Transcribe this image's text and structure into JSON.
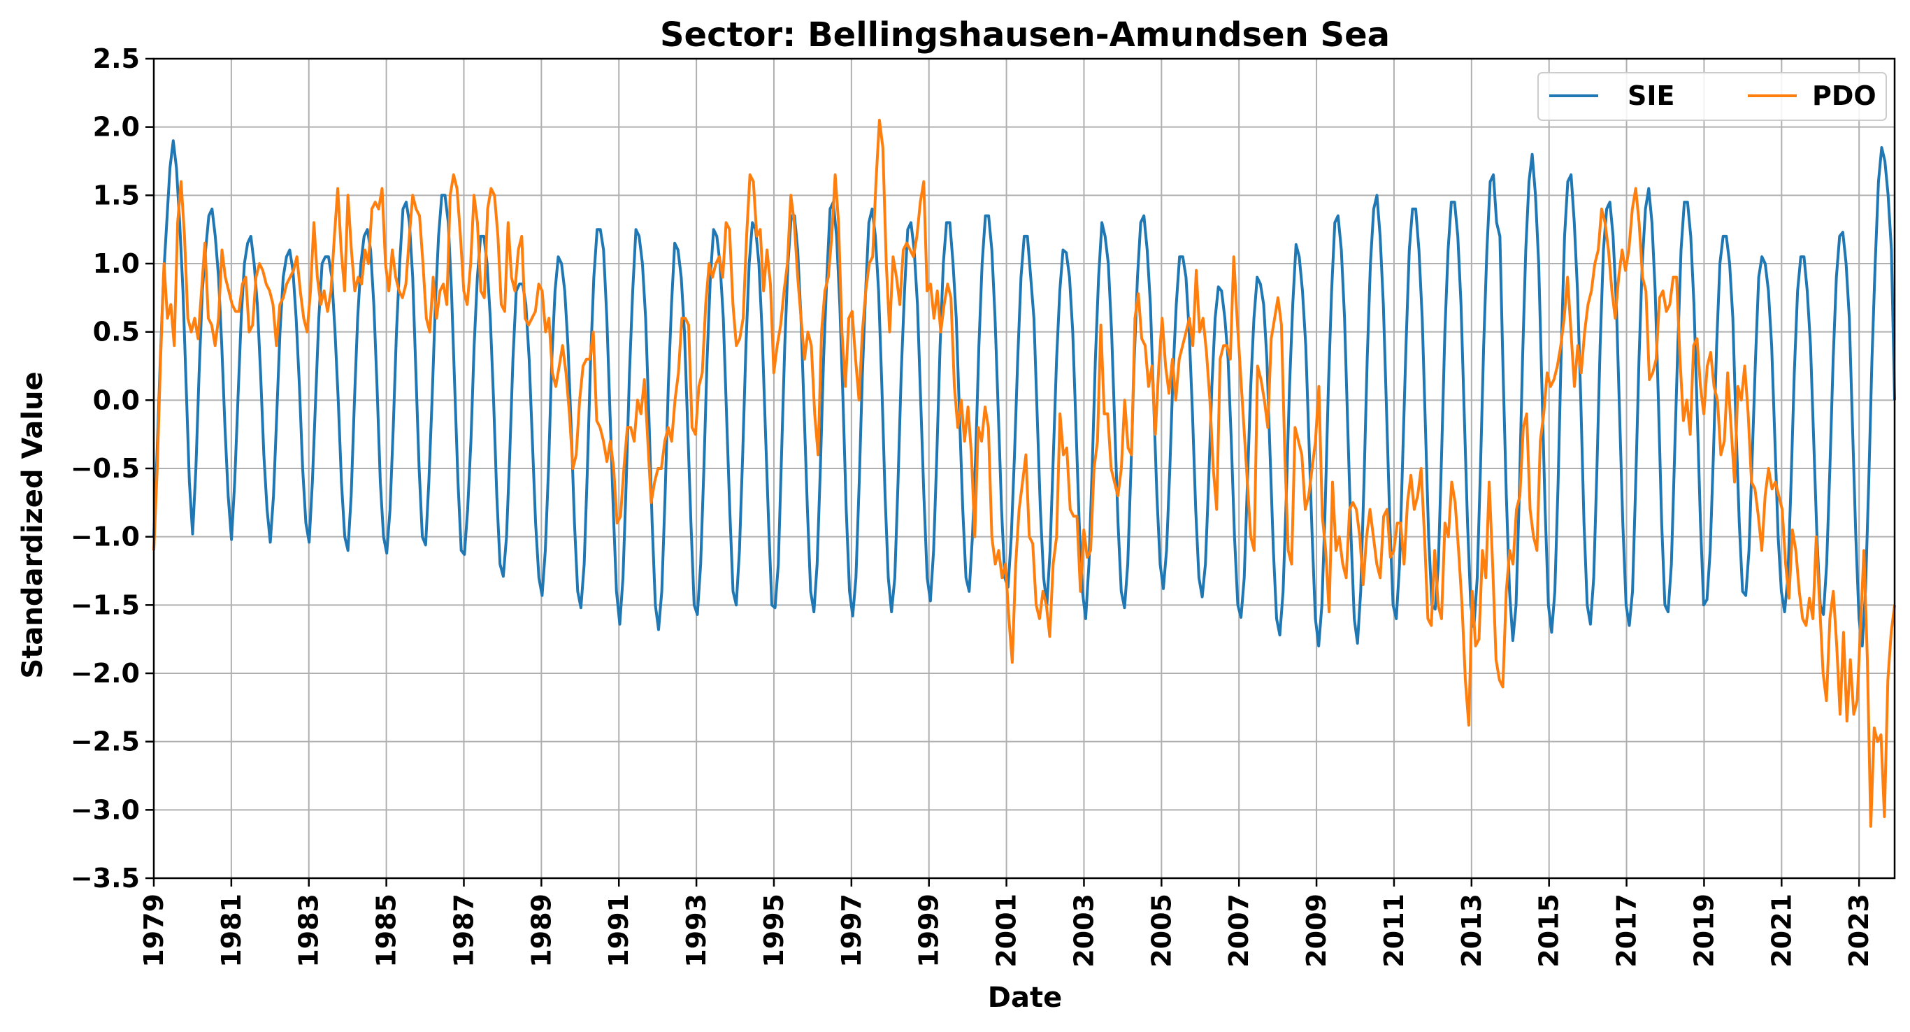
{
  "chart_data": {
    "type": "line",
    "title": "Sector: Bellingshausen-Amundsen Sea",
    "xlabel": "Date",
    "ylabel": "Standardized Value",
    "xlim": [
      "1979-01",
      "2023-12"
    ],
    "ylim": [
      -3.5,
      2.5
    ],
    "grid": true,
    "legend": "top-right",
    "x_ticks": [
      "1979",
      "1981",
      "1983",
      "1985",
      "1987",
      "1989",
      "1991",
      "1993",
      "1995",
      "1997",
      "1999",
      "2001",
      "2003",
      "2005",
      "2007",
      "2009",
      "2011",
      "2013",
      "2015",
      "2017",
      "2019",
      "2021",
      "2023"
    ],
    "y_ticks": [
      "2.5",
      "2.0",
      "1.5",
      "1.0",
      "0.5",
      "0.0",
      "−0.5",
      "−1.0",
      "−1.5",
      "−2.0",
      "−2.5",
      "−3.0",
      "−3.5"
    ],
    "series": [
      {
        "name": "SIE",
        "color": "#1f77b4",
        "sampling": "monthly from 1979-01",
        "values": [
          -1.0,
          -0.4,
          0.3,
          0.9,
          1.3,
          1.7,
          1.9,
          1.7,
          1.3,
          0.8,
          0.1,
          -0.6,
          -0.98,
          -0.5,
          0.2,
          0.8,
          1.1,
          1.35,
          1.4,
          1.2,
          0.9,
          0.4,
          -0.2,
          -0.7,
          -1.02,
          -0.6,
          0.0,
          0.6,
          1.0,
          1.15,
          1.2,
          1.0,
          0.7,
          0.2,
          -0.4,
          -0.8,
          -1.04,
          -0.7,
          -0.1,
          0.5,
          0.9,
          1.05,
          1.1,
          0.95,
          0.6,
          0.1,
          -0.5,
          -0.9,
          -1.04,
          -0.6,
          0.0,
          0.6,
          1.0,
          1.05,
          1.05,
          0.9,
          0.5,
          0.0,
          -0.6,
          -1.0,
          -1.1,
          -0.7,
          0.0,
          0.6,
          1.0,
          1.2,
          1.25,
          1.1,
          0.7,
          0.1,
          -0.6,
          -1.0,
          -1.12,
          -0.8,
          -0.2,
          0.5,
          1.0,
          1.4,
          1.45,
          1.3,
          0.9,
          0.2,
          -0.5,
          -1.0,
          -1.06,
          -0.6,
          0.0,
          0.7,
          1.2,
          1.5,
          1.5,
          1.3,
          0.8,
          0.1,
          -0.6,
          -1.1,
          -1.13,
          -0.8,
          -0.3,
          0.4,
          0.9,
          1.2,
          1.2,
          1.0,
          0.6,
          0.0,
          -0.7,
          -1.2,
          -1.29,
          -1.0,
          -0.4,
          0.3,
          0.8,
          0.85,
          0.85,
          0.7,
          0.3,
          -0.3,
          -0.9,
          -1.3,
          -1.43,
          -1.1,
          -0.5,
          0.3,
          0.8,
          1.05,
          1.0,
          0.8,
          0.4,
          -0.2,
          -0.9,
          -1.4,
          -1.52,
          -1.2,
          -0.5,
          0.3,
          0.9,
          1.25,
          1.25,
          1.1,
          0.6,
          -0.1,
          -0.8,
          -1.4,
          -1.64,
          -1.3,
          -0.6,
          0.2,
          0.8,
          1.25,
          1.2,
          1.0,
          0.6,
          -0.1,
          -0.9,
          -1.5,
          -1.68,
          -1.4,
          -0.7,
          0.1,
          0.7,
          1.15,
          1.1,
          0.9,
          0.5,
          -0.2,
          -0.9,
          -1.5,
          -1.57,
          -1.2,
          -0.5,
          0.3,
          0.9,
          1.25,
          1.2,
          1.0,
          0.6,
          -0.1,
          -0.8,
          -1.4,
          -1.5,
          -1.1,
          -0.4,
          0.4,
          1.0,
          1.3,
          1.25,
          1.0,
          0.5,
          -0.2,
          -0.9,
          -1.5,
          -1.52,
          -1.2,
          -0.4,
          0.4,
          1.0,
          1.35,
          1.35,
          1.1,
          0.6,
          -0.1,
          -0.8,
          -1.4,
          -1.55,
          -1.2,
          -0.5,
          0.3,
          0.9,
          1.4,
          1.45,
          1.2,
          0.7,
          0.0,
          -0.8,
          -1.4,
          -1.58,
          -1.3,
          -0.6,
          0.2,
          0.8,
          1.3,
          1.4,
          1.2,
          0.8,
          0.1,
          -0.7,
          -1.3,
          -1.55,
          -1.3,
          -0.6,
          0.2,
          0.8,
          1.25,
          1.3,
          1.1,
          0.7,
          0.0,
          -0.7,
          -1.3,
          -1.47,
          -1.1,
          -0.4,
          0.4,
          1.0,
          1.3,
          1.3,
          1.0,
          0.6,
          -0.1,
          -0.8,
          -1.3,
          -1.4,
          -1.0,
          -0.4,
          0.4,
          1.0,
          1.35,
          1.35,
          1.1,
          0.6,
          -0.1,
          -0.8,
          -1.3,
          -1.37,
          -1.0,
          -0.4,
          0.3,
          0.9,
          1.2,
          1.2,
          0.9,
          0.6,
          -0.1,
          -0.8,
          -1.3,
          -1.5,
          -1.1,
          -0.4,
          0.3,
          0.8,
          1.1,
          1.08,
          0.9,
          0.5,
          -0.2,
          -0.9,
          -1.4,
          -1.6,
          -1.2,
          -0.5,
          0.3,
          0.9,
          1.3,
          1.2,
          1.0,
          0.5,
          -0.2,
          -0.9,
          -1.4,
          -1.52,
          -1.2,
          -0.5,
          0.3,
          0.9,
          1.3,
          1.35,
          1.1,
          0.7,
          0.0,
          -0.7,
          -1.2,
          -1.38,
          -1.1,
          -0.5,
          0.2,
          0.7,
          1.05,
          1.05,
          0.9,
          0.5,
          -0.1,
          -0.8,
          -1.3,
          -1.44,
          -1.2,
          -0.6,
          0.1,
          0.6,
          0.83,
          0.8,
          0.6,
          0.3,
          -0.3,
          -1.0,
          -1.5,
          -1.59,
          -1.3,
          -0.6,
          0.1,
          0.6,
          0.9,
          0.85,
          0.7,
          0.3,
          -0.4,
          -1.1,
          -1.6,
          -1.72,
          -1.4,
          -0.7,
          0.1,
          0.7,
          1.14,
          1.05,
          0.8,
          0.4,
          -0.3,
          -1.0,
          -1.6,
          -1.8,
          -1.5,
          -0.8,
          0.1,
          0.8,
          1.3,
          1.35,
          1.1,
          0.6,
          -0.2,
          -1.0,
          -1.6,
          -1.78,
          -1.4,
          -0.6,
          0.3,
          1.0,
          1.4,
          1.5,
          1.2,
          0.7,
          -0.1,
          -0.9,
          -1.5,
          -1.6,
          -1.2,
          -0.4,
          0.4,
          1.1,
          1.4,
          1.4,
          1.1,
          0.6,
          -0.2,
          -1.0,
          -1.5,
          -1.53,
          -1.2,
          -0.4,
          0.5,
          1.1,
          1.45,
          1.45,
          1.2,
          0.7,
          -0.1,
          -0.9,
          -1.5,
          -1.66,
          -1.3,
          -0.5,
          0.4,
          1.1,
          1.6,
          1.65,
          1.3,
          1.2,
          0.2,
          -0.7,
          -1.4,
          -1.76,
          -1.5,
          -0.7,
          0.3,
          1.1,
          1.6,
          1.8,
          1.5,
          1.0,
          0.1,
          -0.8,
          -1.5,
          -1.7,
          -1.4,
          -0.6,
          0.4,
          1.2,
          1.6,
          1.65,
          1.3,
          0.8,
          0.0,
          -0.9,
          -1.5,
          -1.64,
          -1.3,
          -0.5,
          0.4,
          1.1,
          1.4,
          1.45,
          1.2,
          0.7,
          -0.1,
          -0.9,
          -1.5,
          -1.65,
          -1.4,
          -0.6,
          0.3,
          1.0,
          1.4,
          1.55,
          1.3,
          0.8,
          0.0,
          -0.9,
          -1.5,
          -1.55,
          -1.2,
          -0.4,
          0.4,
          1.1,
          1.45,
          1.45,
          1.2,
          0.7,
          -0.1,
          -0.9,
          -1.5,
          -1.46,
          -1.1,
          -0.4,
          0.4,
          1.0,
          1.2,
          1.2,
          1.0,
          0.6,
          -0.2,
          -0.9,
          -1.4,
          -1.43,
          -1.1,
          -0.4,
          0.3,
          0.9,
          1.05,
          1.0,
          0.8,
          0.4,
          -0.3,
          -1.0,
          -1.4,
          -1.55,
          -1.3,
          -0.6,
          0.2,
          0.8,
          1.05,
          1.05,
          0.8,
          0.4,
          -0.3,
          -1.0,
          -1.5,
          -1.57,
          -1.2,
          -0.5,
          0.3,
          0.9,
          1.2,
          1.23,
          1.0,
          0.6,
          -0.2,
          -1.0,
          -1.6,
          -1.8,
          -1.4,
          -0.6,
          0.3,
          1.0,
          1.6,
          1.85,
          1.75,
          1.5,
          1.1,
          0.0
        ]
      },
      {
        "name": "PDO",
        "color": "#ff7f0e",
        "sampling": "monthly from 1979-01",
        "values": [
          -1.1,
          -0.5,
          0.3,
          1.0,
          0.6,
          0.7,
          0.4,
          1.3,
          1.6,
          1.2,
          0.6,
          0.5,
          0.6,
          0.45,
          0.8,
          1.15,
          0.6,
          0.55,
          0.4,
          0.6,
          1.1,
          0.9,
          0.8,
          0.7,
          0.65,
          0.65,
          0.85,
          0.9,
          0.5,
          0.55,
          0.9,
          1.0,
          0.95,
          0.85,
          0.8,
          0.7,
          0.4,
          0.7,
          0.75,
          0.85,
          0.9,
          0.95,
          1.05,
          0.8,
          0.6,
          0.5,
          0.8,
          1.3,
          0.9,
          0.7,
          0.8,
          0.65,
          0.8,
          1.2,
          1.55,
          1.1,
          0.8,
          1.5,
          1.1,
          0.8,
          0.9,
          0.85,
          1.1,
          1.0,
          1.4,
          1.45,
          1.4,
          1.55,
          1.0,
          0.8,
          1.1,
          0.9,
          0.8,
          0.75,
          0.85,
          1.2,
          1.5,
          1.4,
          1.35,
          1.0,
          0.6,
          0.5,
          0.9,
          0.6,
          0.8,
          0.85,
          0.7,
          1.5,
          1.65,
          1.55,
          1.2,
          0.8,
          0.7,
          1.0,
          1.5,
          1.3,
          0.8,
          0.75,
          1.4,
          1.55,
          1.5,
          1.2,
          0.7,
          0.65,
          1.3,
          0.9,
          0.8,
          1.1,
          1.2,
          0.6,
          0.55,
          0.6,
          0.65,
          0.85,
          0.8,
          0.5,
          0.6,
          0.2,
          0.1,
          0.25,
          0.4,
          0.2,
          -0.1,
          -0.5,
          -0.4,
          0.0,
          0.25,
          0.3,
          0.3,
          0.5,
          -0.15,
          -0.2,
          -0.3,
          -0.45,
          -0.3,
          -0.5,
          -0.9,
          -0.85,
          -0.5,
          -0.2,
          -0.2,
          -0.3,
          0.0,
          -0.1,
          0.15,
          -0.3,
          -0.75,
          -0.6,
          -0.5,
          -0.5,
          -0.3,
          -0.2,
          -0.3,
          0.0,
          0.2,
          0.6,
          0.6,
          0.55,
          -0.2,
          -0.25,
          0.1,
          0.2,
          0.7,
          1.0,
          0.9,
          1.0,
          1.05,
          0.9,
          1.3,
          1.25,
          0.7,
          0.4,
          0.45,
          0.6,
          1.2,
          1.65,
          1.6,
          1.2,
          1.25,
          0.8,
          1.1,
          0.85,
          0.2,
          0.4,
          0.55,
          0.8,
          1.0,
          1.5,
          1.3,
          0.9,
          0.6,
          0.3,
          0.5,
          0.4,
          -0.1,
          -0.4,
          0.5,
          0.8,
          0.9,
          1.2,
          1.65,
          1.3,
          0.5,
          0.1,
          0.6,
          0.65,
          0.3,
          0.0,
          0.5,
          0.8,
          1.0,
          1.05,
          1.6,
          2.05,
          1.85,
          1.0,
          0.5,
          1.05,
          0.9,
          0.7,
          1.1,
          1.15,
          1.1,
          1.05,
          1.2,
          1.45,
          1.6,
          0.8,
          0.85,
          0.6,
          0.8,
          0.5,
          0.7,
          0.85,
          0.75,
          0.1,
          -0.2,
          0.0,
          -0.3,
          -0.05,
          -0.4,
          -1.0,
          -0.2,
          -0.3,
          -0.05,
          -0.2,
          -1.0,
          -1.2,
          -1.1,
          -1.3,
          -1.2,
          -1.6,
          -1.92,
          -1.2,
          -0.8,
          -0.6,
          -0.4,
          -1.0,
          -1.05,
          -1.5,
          -1.6,
          -1.4,
          -1.5,
          -1.73,
          -1.2,
          -1.0,
          -0.1,
          -0.4,
          -0.35,
          -0.8,
          -0.85,
          -0.85,
          -1.4,
          -0.95,
          -1.15,
          -1.1,
          -0.5,
          -0.3,
          0.55,
          -0.1,
          -0.1,
          -0.5,
          -0.6,
          -0.7,
          -0.5,
          0.0,
          -0.35,
          -0.4,
          0.6,
          0.78,
          0.45,
          0.4,
          0.1,
          0.25,
          -0.25,
          0.25,
          0.6,
          0.25,
          0.05,
          0.3,
          0.0,
          0.3,
          0.4,
          0.5,
          0.6,
          0.4,
          0.95,
          0.5,
          0.6,
          0.35,
          0.0,
          -0.5,
          -0.8,
          0.3,
          0.4,
          0.4,
          0.3,
          1.05,
          0.6,
          0.2,
          -0.2,
          -0.6,
          -1.0,
          -1.1,
          0.25,
          0.15,
          0.0,
          -0.2,
          0.45,
          0.6,
          0.75,
          0.55,
          -0.4,
          -1.1,
          -1.2,
          -0.2,
          -0.3,
          -0.4,
          -0.8,
          -0.7,
          -0.5,
          -0.3,
          0.1,
          -0.85,
          -1.1,
          -1.55,
          -0.6,
          -1.1,
          -1.0,
          -1.2,
          -1.3,
          -0.8,
          -0.75,
          -0.8,
          -1.0,
          -1.35,
          -1.0,
          -0.8,
          -1.0,
          -1.2,
          -1.3,
          -0.85,
          -0.8,
          -1.15,
          -1.1,
          -0.9,
          -0.9,
          -1.2,
          -0.75,
          -0.55,
          -0.8,
          -0.7,
          -0.5,
          -1.0,
          -1.6,
          -1.65,
          -1.1,
          -1.5,
          -1.6,
          -0.9,
          -1.0,
          -0.6,
          -0.75,
          -1.1,
          -1.5,
          -2.05,
          -2.38,
          -1.4,
          -1.8,
          -1.75,
          -1.1,
          -1.3,
          -0.6,
          -1.2,
          -1.9,
          -2.05,
          -2.1,
          -1.4,
          -1.1,
          -1.2,
          -0.8,
          -0.7,
          -0.2,
          -0.1,
          -0.8,
          -1.0,
          -1.1,
          -0.3,
          -0.1,
          0.2,
          0.1,
          0.15,
          0.25,
          0.4,
          0.6,
          0.9,
          0.5,
          0.1,
          0.4,
          0.2,
          0.5,
          0.7,
          0.8,
          1.0,
          1.1,
          1.4,
          1.3,
          1.1,
          0.8,
          0.6,
          0.9,
          1.1,
          0.95,
          1.1,
          1.4,
          1.55,
          1.3,
          0.9,
          0.8,
          0.15,
          0.2,
          0.3,
          0.75,
          0.8,
          0.65,
          0.7,
          0.9,
          0.9,
          0.3,
          -0.15,
          0.0,
          -0.25,
          0.4,
          0.45,
          0.1,
          -0.1,
          0.25,
          0.35,
          0.1,
          0.0,
          -0.4,
          -0.3,
          0.2,
          -0.2,
          -0.6,
          0.1,
          0.0,
          0.25,
          -0.1,
          -0.6,
          -0.65,
          -0.85,
          -1.1,
          -0.7,
          -0.5,
          -0.65,
          -0.6,
          -0.7,
          -0.8,
          -1.2,
          -1.45,
          -0.95,
          -1.1,
          -1.4,
          -1.6,
          -1.65,
          -1.45,
          -1.6,
          -1.0,
          -1.5,
          -2.0,
          -2.2,
          -1.6,
          -1.4,
          -1.8,
          -2.3,
          -1.7,
          -2.35,
          -1.9,
          -2.3,
          -2.2,
          -1.65,
          -1.1,
          -1.9,
          -3.12,
          -2.4,
          -2.5,
          -2.45,
          -3.05,
          -2.05,
          -1.7,
          -1.5
        ]
      }
    ]
  }
}
